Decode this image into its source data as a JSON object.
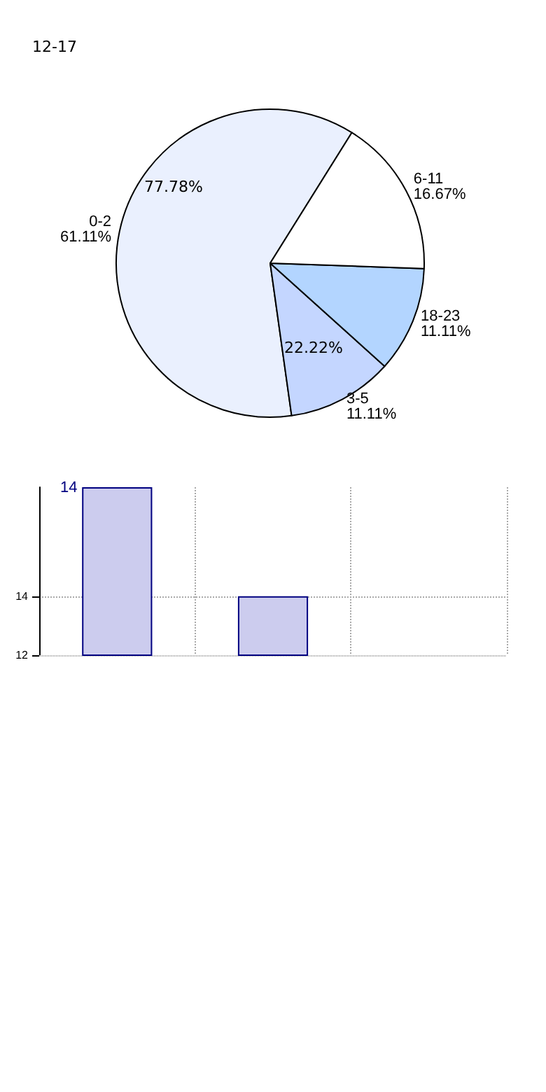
{
  "chart_data": [
    {
      "type": "pie",
      "categories": [
        "0-2",
        "3-5",
        "18-23",
        "6-11"
      ],
      "values": [
        61.11,
        11.11,
        11.11,
        16.67
      ],
      "colors": [
        "#eaf0fe",
        "#c4d6ff",
        "#b3d5ff",
        "#ffffff"
      ],
      "value_labels": [
        "61.11%",
        "11.11%",
        "11.11%",
        "16.67%"
      ],
      "annotations": [
        "12-17",
        "77.78%",
        "22.22%"
      ]
    },
    {
      "type": "bar",
      "categories": [
        null,
        null,
        null
      ],
      "values": [
        17.7,
        14,
        null
      ],
      "color": "#ccccee",
      "ylim": [
        12,
        17.7
      ],
      "yticks": [
        12,
        14
      ],
      "grid": true,
      "annotations": [
        "14"
      ]
    }
  ]
}
